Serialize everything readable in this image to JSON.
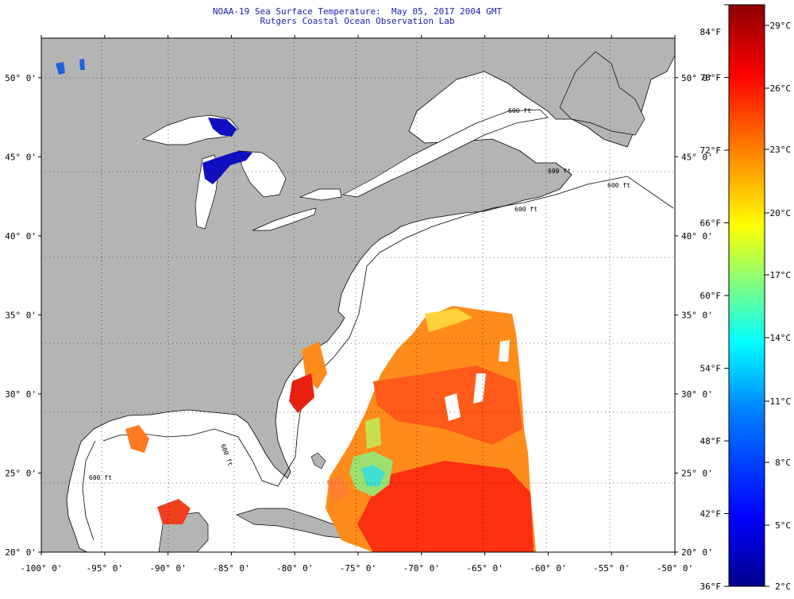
{
  "title": {
    "line1": "NOAA-19 Sea Surface Temperature:  May 05, 2017 2004 GMT",
    "line2": "Rutgers Coastal Ocean Observation Lab"
  },
  "map": {
    "lon_range": [
      -100,
      -50
    ],
    "lat_range": [
      20,
      52.5
    ],
    "lon_ticks": [
      {
        "value": -100,
        "label": "-100° 0'"
      },
      {
        "value": -95,
        "label": "-95° 0'"
      },
      {
        "value": -90,
        "label": "-90° 0'"
      },
      {
        "value": -85,
        "label": "-85° 0'"
      },
      {
        "value": -80,
        "label": "-80° 0'"
      },
      {
        "value": -75,
        "label": "-75° 0'"
      },
      {
        "value": -70,
        "label": "-70° 0'"
      },
      {
        "value": -65,
        "label": "-65° 0'"
      },
      {
        "value": -60,
        "label": "-60° 0'"
      },
      {
        "value": -55,
        "label": "-55° 0'"
      },
      {
        "value": -50,
        "label": "-50° 0'"
      }
    ],
    "lat_ticks": [
      {
        "value": 20,
        "label": "20° 0'"
      },
      {
        "value": 25,
        "label": "25° 0'"
      },
      {
        "value": 30,
        "label": "30° 0'"
      },
      {
        "value": 35,
        "label": "35° 0'"
      },
      {
        "value": 40,
        "label": "40° 0'"
      },
      {
        "value": 45,
        "label": "45° 0'"
      },
      {
        "value": 50,
        "label": "50° 0'"
      }
    ],
    "grid": "dotted",
    "land_color": "#b4b4b4",
    "ocean_color": "#ffffff",
    "contour_labels": [
      "600 ft",
      "600 ft",
      "600 ft",
      "600 ft",
      "600 ft",
      "600 ft"
    ]
  },
  "colorbar": {
    "fahrenheit_labels": [
      "84°F",
      "78°F",
      "72°F",
      "66°F",
      "60°F",
      "54°F",
      "48°F",
      "42°F",
      "36°F"
    ],
    "celsius_labels": [
      "29°C",
      "26°C",
      "23°C",
      "20°C",
      "17°C",
      "14°C",
      "11°C",
      "8°C",
      "5°C",
      "2°C"
    ],
    "min_f": 36,
    "max_f": 84,
    "colors": [
      "#00008c",
      "#0000ff",
      "#0080ff",
      "#00ffff",
      "#80ff80",
      "#ffff00",
      "#ff8000",
      "#ff0000",
      "#8b0000"
    ]
  }
}
